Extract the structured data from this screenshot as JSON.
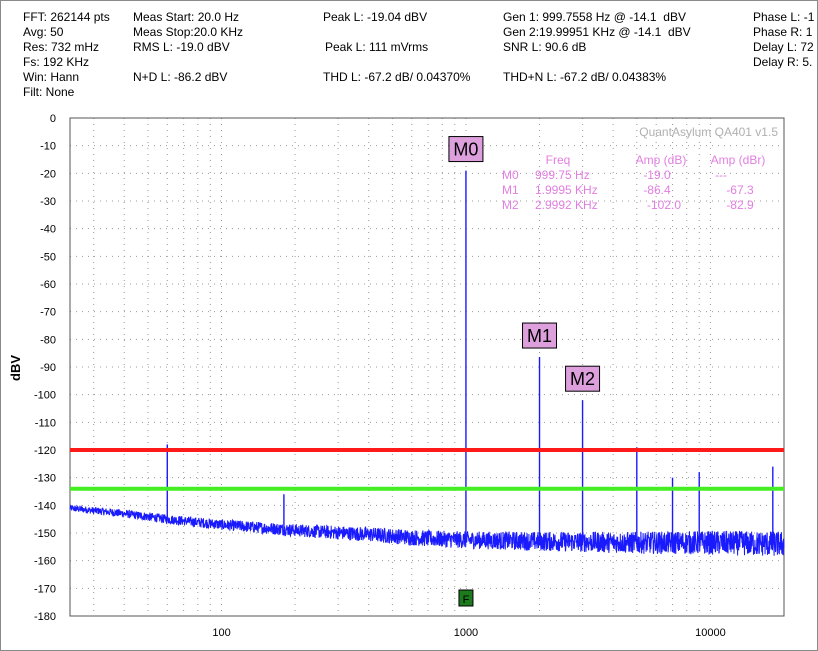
{
  "header": {
    "fft": "FFT: 262144 pts",
    "avg": "Avg: 50",
    "res": "Res: 732 mHz",
    "fs": "Fs: 192 KHz",
    "win": "Win: Hann",
    "filt": "Filt: None",
    "meas_start": "Meas Start: 20.0 Hz",
    "meas_stop": "Meas Stop:20.0 KHz",
    "rms_l": "RMS L: -19.0 dBV",
    "nd_l": "N+D L: -86.2 dBV",
    "peak_l_dbv": "Peak L: -19.04 dBV",
    "peak_l_mvrms": "Peak L: 111 mVrms",
    "thd_l": "THD L: -67.2 dB/ 0.04370%",
    "gen1": "Gen 1: 999.7558 Hz @ -14.1  dBV",
    "gen2": "Gen 2:19.99951 KHz @ -14.1  dBV",
    "snr_l": "SNR L: 90.6 dB",
    "thdn_l": "THD+N L: -67.2 dB/ 0.04383%",
    "phase_l": "Phase L: -1",
    "phase_r": "Phase R: 1",
    "delay_l": "Delay L: 72",
    "delay_r": "Delay R: 5."
  },
  "watermark": "QuantAsylum QA401 v1.5",
  "marker_table": {
    "col_freq": "Freq",
    "col_amp_db": "Amp (dB)",
    "col_amp_dbr": "Amp (dBr)",
    "rows": [
      {
        "name": "M0",
        "freq": "999.75 Hz",
        "amp_db": "-19.0",
        "amp_dbr": "---"
      },
      {
        "name": "M1",
        "freq": "1.9995 KHz",
        "amp_db": "-86.4",
        "amp_dbr": "-67.3"
      },
      {
        "name": "M2",
        "freq": "2.9992 KHz",
        "amp_db": "-102.0",
        "amp_dbr": "-82.9"
      }
    ]
  },
  "f_marker_label": "F",
  "colors": {
    "trace": "#1a1aff",
    "red_line": "#ff1a1a",
    "green_line": "#44ee22",
    "marker_box": "#dda0dd",
    "table_text": "#e27ee2",
    "f_marker": "#1e7a1e"
  },
  "chart_data": {
    "type": "line",
    "xscale": "log",
    "xlim": [
      24,
      20000
    ],
    "ylim": [
      -180,
      0
    ],
    "ylabel": "dBV",
    "xlabel": "",
    "grid": true,
    "yticks": [
      0,
      -10,
      -20,
      -30,
      -40,
      -50,
      -60,
      -70,
      -80,
      -90,
      -100,
      -110,
      -120,
      -130,
      -140,
      -150,
      -160,
      -170,
      -180
    ],
    "xticks": [
      100,
      1000,
      10000
    ],
    "xtick_labels": [
      "100",
      "1000",
      "10000"
    ],
    "noise_floor": {
      "x": [
        24,
        40,
        60,
        100,
        200,
        400,
        700,
        1000,
        2000,
        5000,
        10000,
        20000
      ],
      "y": [
        -141,
        -143,
        -145,
        -147,
        -149,
        -150.5,
        -152,
        -152.5,
        -153,
        -153.5,
        -153.5,
        -154
      ]
    },
    "spurs": [
      {
        "x": 60,
        "y": -118
      },
      {
        "x": 180,
        "y": -136
      },
      {
        "x": 999.75,
        "y": -19.0
      },
      {
        "x": 1999.5,
        "y": -86.4
      },
      {
        "x": 2999.2,
        "y": -102.0
      },
      {
        "x": 4999,
        "y": -119
      },
      {
        "x": 6999,
        "y": -130
      },
      {
        "x": 8999,
        "y": -128
      },
      {
        "x": 18000,
        "y": -126
      }
    ],
    "markers": [
      {
        "name": "M0",
        "x": 999.75,
        "y": -19.0
      },
      {
        "name": "M1",
        "x": 1999.5,
        "y": -86.4
      },
      {
        "name": "M2",
        "x": 2999.2,
        "y": -102.0
      }
    ],
    "threshold_lines": [
      {
        "y": -120,
        "color": "#ff1a1a"
      },
      {
        "y": -134,
        "color": "#44ee22"
      }
    ],
    "f_marker_x": 1000
  }
}
